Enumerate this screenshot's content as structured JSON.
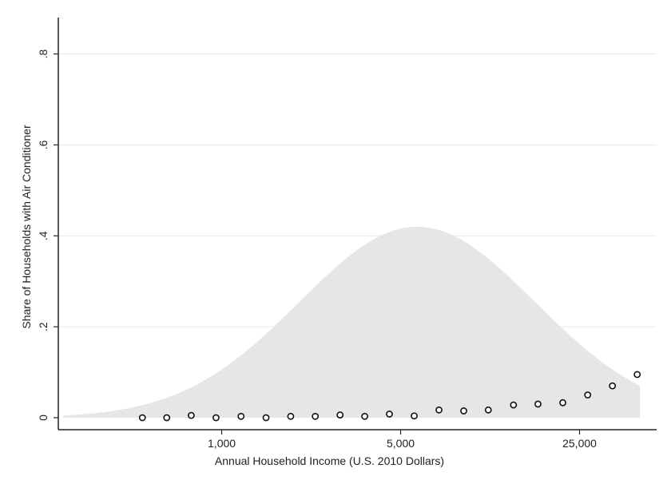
{
  "chart_data": {
    "type": "scatter",
    "title": "",
    "xlabel": "Annual Household Income (U.S. 2010 Dollars)",
    "ylabel": "Share of Households with Air Conditioner",
    "x_scale": "log",
    "xlim": [
      230,
      50000
    ],
    "ylim": [
      0,
      0.88
    ],
    "grid": true,
    "legend": "none",
    "x_ticks": [
      {
        "value": 1000,
        "label": "1,000"
      },
      {
        "value": 5000,
        "label": "5,000"
      },
      {
        "value": 25000,
        "label": "25,000"
      }
    ],
    "y_ticks": [
      {
        "value": 0,
        "label": "0"
      },
      {
        "value": 0.2,
        "label": ".2"
      },
      {
        "value": 0.4,
        "label": ".4"
      },
      {
        "value": 0.6,
        "label": ".6"
      },
      {
        "value": 0.8,
        "label": ".8"
      }
    ],
    "density": {
      "peak_income": 5800,
      "peak_value": 0.42,
      "spread_log10": 0.46,
      "x_range": [
        240,
        43000
      ],
      "fill_color": "#e6e6e6"
    },
    "series": [
      {
        "marker_color": "#111111",
        "x": [
          490,
          610,
          760,
          950,
          1190,
          1490,
          1860,
          2320,
          2900,
          3620,
          4520,
          5650,
          7060,
          8820,
          11000,
          13800,
          17200,
          21500,
          26900,
          33600,
          42000
        ],
        "y": [
          0.0,
          0.0,
          0.005,
          0.0,
          0.003,
          0.0,
          0.003,
          0.003,
          0.006,
          0.003,
          0.008,
          0.004,
          0.017,
          0.015,
          0.017,
          0.028,
          0.03,
          0.033,
          0.05,
          0.07,
          0.095
        ]
      }
    ]
  }
}
